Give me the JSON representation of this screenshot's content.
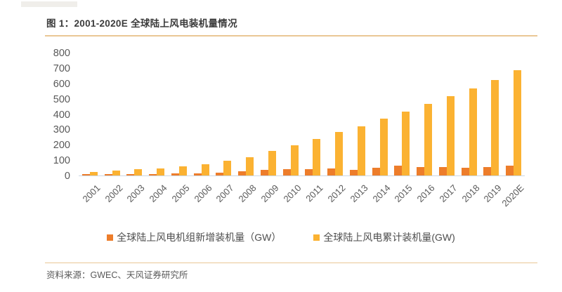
{
  "figure": {
    "title": "图 1：2001-2020E 全球陆上风电装机量情况",
    "source": "资料来源：GWEC、天风证券研究所"
  },
  "colors": {
    "new_bar": "#ED7D2B",
    "cum_bar": "#FBB232",
    "divider": "#EAC795",
    "axis_text": "#595959",
    "baseline": "#CCD6E3"
  },
  "chart_data": {
    "type": "bar",
    "title": "2001-2020E 全球陆上风电装机量情况",
    "categories": [
      "2001",
      "2002",
      "2003",
      "2004",
      "2005",
      "2006",
      "2007",
      "2008",
      "2009",
      "2010",
      "2011",
      "2012",
      "2013",
      "2014",
      "2015",
      "2016",
      "2017",
      "2018",
      "2019",
      "2020E"
    ],
    "series": [
      {
        "name": "全球陆上风电机组新增装机量（GW）",
        "color_key": "new_bar",
        "values": [
          7,
          7,
          8,
          8,
          12,
          15,
          20,
          27,
          38,
          39,
          41,
          45,
          36,
          52,
          63,
          55,
          53,
          51,
          55,
          65
        ]
      },
      {
        "name": "全球陆上风电累计装机量(GW)",
        "color_key": "cum_bar",
        "values": [
          24,
          31,
          39,
          47,
          59,
          74,
          94,
          120,
          159,
          198,
          238,
          283,
          318,
          370,
          417,
          468,
          515,
          568,
          621,
          687
        ]
      }
    ],
    "xlabel": "",
    "ylabel": "",
    "ylim": [
      0,
      800
    ],
    "yticks": [
      800,
      700,
      600,
      500,
      400,
      300,
      200,
      100,
      0
    ],
    "grid": false,
    "legend_position": "bottom"
  }
}
